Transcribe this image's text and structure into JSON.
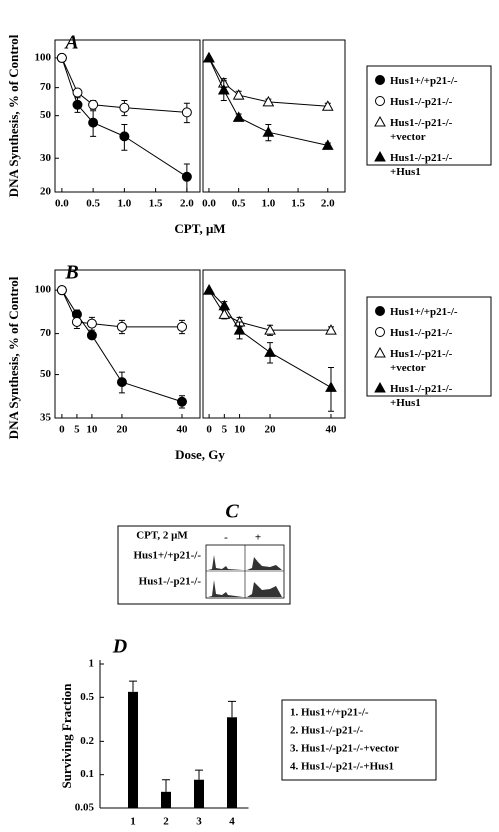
{
  "chart_data": [
    {
      "type": "line",
      "title": "A",
      "ylabel": "DNA Synthesis, % of Control",
      "xlabel": "CPT, μM",
      "log_y": true,
      "xlim": [
        -0.11,
        2.21
      ],
      "xticks": [
        {
          "value": 0,
          "label": "0.0"
        },
        {
          "value": 0.5,
          "label": "0.5"
        },
        {
          "value": 1,
          "label": "1.0"
        },
        1.5,
        {
          "value": 2,
          "label": "2.0"
        }
      ],
      "ylim": [
        20,
        124
      ],
      "yticks": [
        20,
        30,
        50,
        70,
        100
      ],
      "series": [
        {
          "name": "Hus1+/+p21-/-",
          "color": "#000000",
          "marker": "circle",
          "filled": true,
          "x": [
            0,
            0.25,
            0.5,
            1,
            2
          ],
          "values": [
            100,
            57,
            46,
            39,
            24
          ],
          "errors": [
            0,
            5,
            7,
            6,
            4
          ]
        },
        {
          "name": "Hus1-/-p21-/-",
          "color": "#000000",
          "marker": "circle",
          "filled": false,
          "x": [
            0,
            0.25,
            0.5,
            1,
            2
          ],
          "values": [
            100,
            66,
            57,
            55,
            52
          ],
          "errors": [
            0,
            3,
            3,
            5,
            6
          ]
        }
      ]
    },
    {
      "type": "line",
      "log_y": true,
      "xlim": [
        -0.1,
        2.29
      ],
      "xticks": [
        {
          "value": 0,
          "label": "0.0"
        },
        {
          "value": 0.5,
          "label": "0.5"
        },
        {
          "value": 1,
          "label": "1.0"
        },
        1.5,
        {
          "value": 2,
          "label": "2.0"
        }
      ],
      "ylim": [
        20,
        124
      ],
      "series": [
        {
          "name": "Hus1-/-p21-/-\n+vector",
          "color": "#000000",
          "marker": "triangle",
          "filled": false,
          "x": [
            0,
            0.25,
            0.5,
            1,
            2
          ],
          "values": [
            100,
            74,
            64,
            59,
            56
          ],
          "errors": [
            0,
            4,
            3,
            2,
            2
          ]
        },
        {
          "name": "Hus1-/-p21-/-\n+Hus1",
          "color": "#000000",
          "marker": "triangle",
          "filled": true,
          "x": [
            0,
            0.25,
            0.5,
            1,
            2
          ],
          "values": [
            100,
            68,
            49,
            41,
            35
          ],
          "errors": [
            0,
            8,
            2,
            4,
            1
          ]
        }
      ]
    },
    {
      "type": "line",
      "title": "B",
      "ylabel": "DNA Synthesis, % of Control",
      "xlabel": "Dose, Gy",
      "log_y": true,
      "xlim": [
        -2.3,
        46
      ],
      "xticks": [
        0,
        5,
        10,
        20,
        40
      ],
      "ylim": [
        35,
        118
      ],
      "yticks": [
        35,
        50,
        70,
        100
      ],
      "series": [
        {
          "name": "Hus1+/+p21-/-",
          "color": "#000000",
          "marker": "circle",
          "filled": true,
          "x": [
            0,
            5,
            10,
            20,
            40
          ],
          "values": [
            100,
            82,
            69,
            47,
            40
          ],
          "errors": [
            0,
            3,
            2,
            4,
            2
          ]
        },
        {
          "name": "Hus1-/-p21-/-",
          "color": "#000000",
          "marker": "circle",
          "filled": false,
          "x": [
            0,
            5,
            10,
            20,
            40
          ],
          "values": [
            100,
            77,
            76,
            74,
            74
          ],
          "errors": [
            0,
            4,
            4,
            4,
            4
          ]
        }
      ]
    },
    {
      "type": "line",
      "log_y": true,
      "xlim": [
        -2,
        44.6
      ],
      "xticks": [
        0,
        5,
        10,
        20,
        40
      ],
      "ylim": [
        35,
        118
      ],
      "series": [
        {
          "name": "Hus1-/-p21-/-\n+vector",
          "color": "#000000",
          "marker": "triangle",
          "filled": false,
          "x": [
            0,
            5,
            10,
            20,
            40
          ],
          "values": [
            100,
            82,
            77,
            72,
            72
          ],
          "errors": [
            0,
            3,
            3,
            3,
            2
          ]
        },
        {
          "name": "Hus1-/-p21-/-\n+Hus1",
          "color": "#000000",
          "marker": "triangle",
          "filled": true,
          "x": [
            0,
            5,
            10,
            20,
            40
          ],
          "values": [
            100,
            88,
            72,
            60,
            45
          ],
          "errors": [
            0,
            3,
            5,
            5,
            8
          ]
        }
      ]
    },
    {
      "type": "bar",
      "title": "D",
      "ylabel": "Surviving Fraction",
      "log_y": true,
      "color": "#000000",
      "categories": [
        "1",
        "2",
        "3",
        "4"
      ],
      "values": [
        0.56,
        0.07,
        0.09,
        0.33
      ],
      "errors": [
        0.14,
        0.02,
        0.02,
        0.13
      ],
      "ylim": [
        0.05,
        1
      ],
      "yticks": [
        0.05,
        0.1,
        0.2,
        0.5,
        1
      ],
      "legend_labels": [
        "1. Hus1+/+p21-/-",
        "2. Hus1-/-p21-/-",
        "3. Hus1-/-p21-/-+vector",
        "4. Hus1-/-p21-/-+Hus1"
      ]
    }
  ],
  "panel_c": {
    "title": "C",
    "condition": "CPT, 2 μM",
    "columns": [
      "-",
      "+"
    ],
    "rows": [
      "Hus1+/+p21-/-",
      "Hus1-/-p21-/-"
    ]
  }
}
